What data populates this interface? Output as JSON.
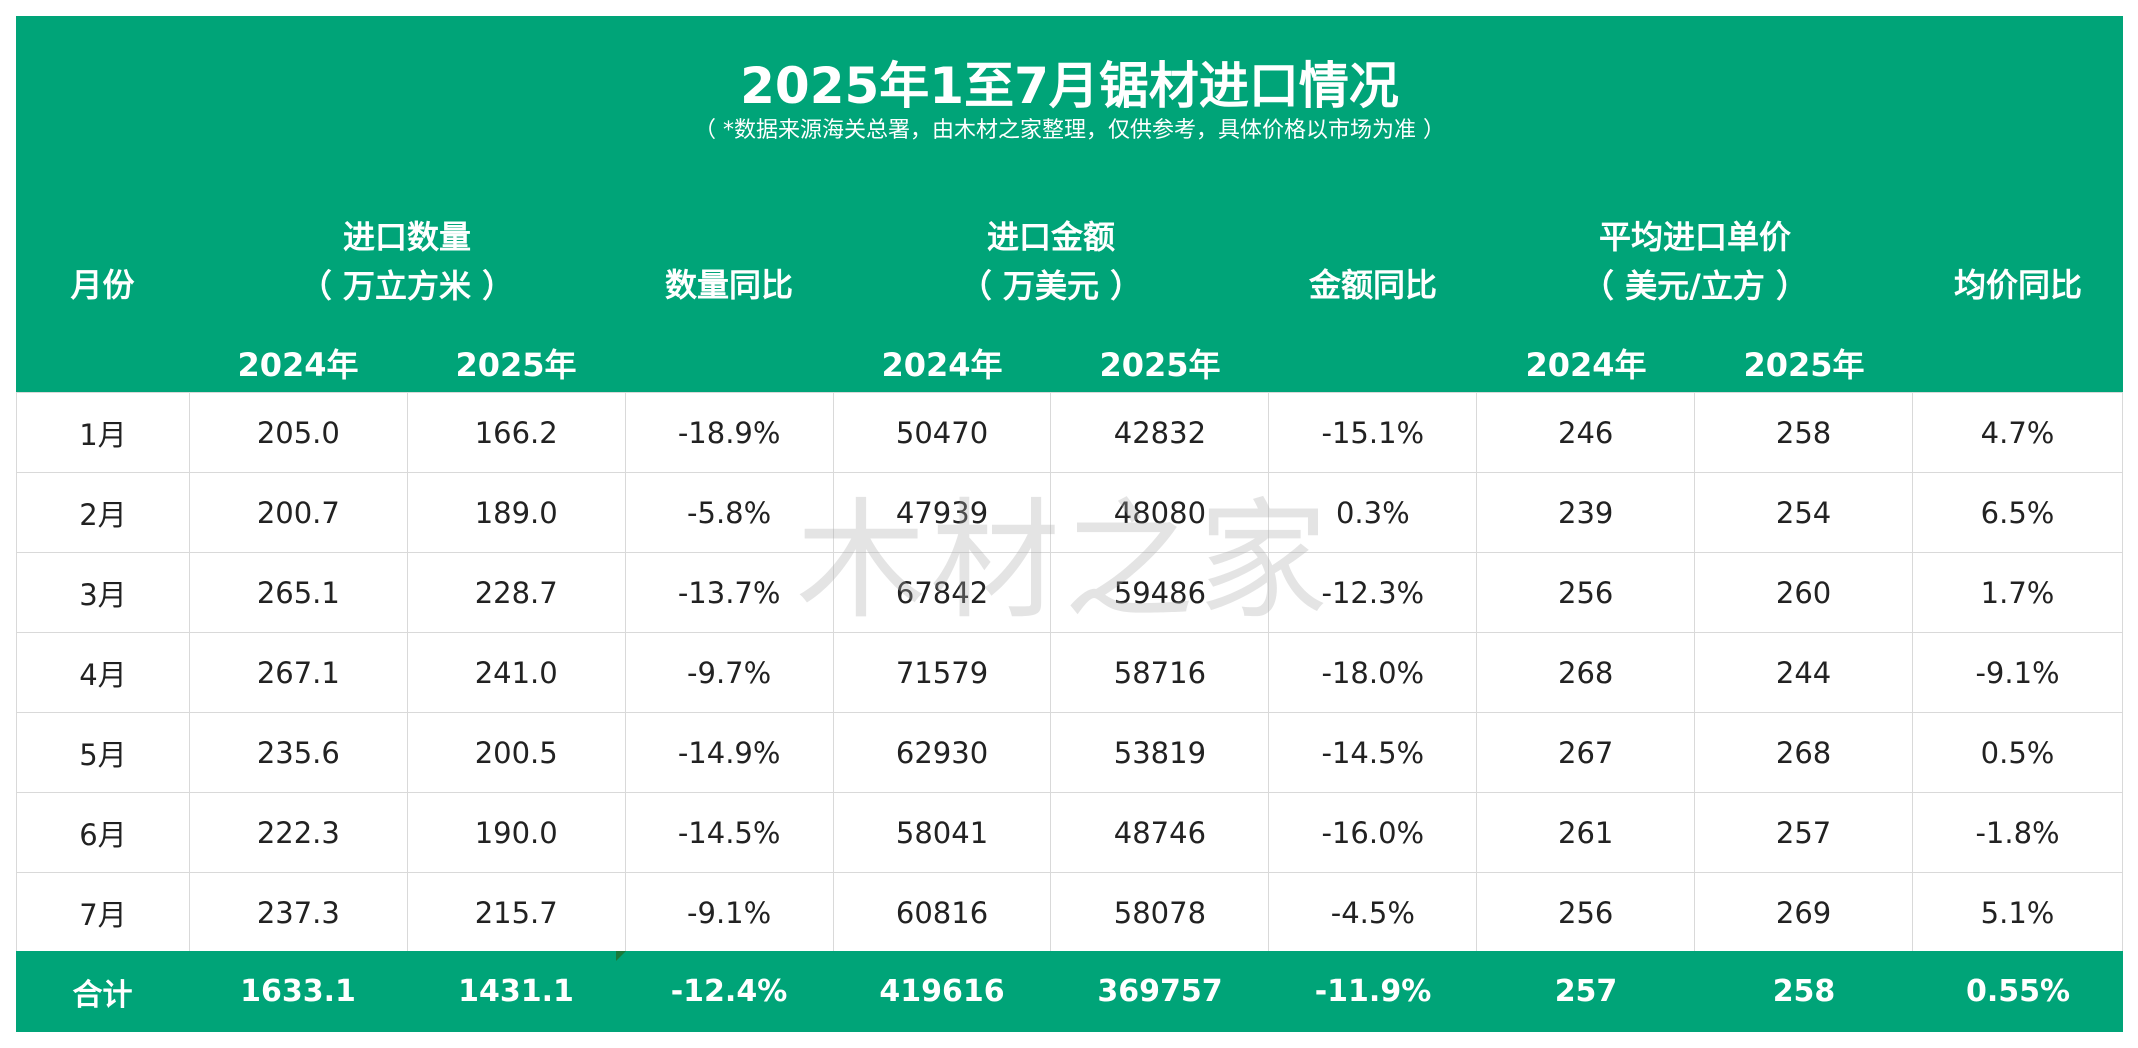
{
  "title": "2025年1至7月锯材进口情况",
  "subtitle": "（ *数据来源海关总署，由木材之家整理，仅供参考，具体价格以市场为准 ）",
  "header": {
    "month": "月份",
    "qty_line1": "进口数量",
    "qty_line2": "（ 万立方米 ）",
    "qty_yoy": "数量同比",
    "amt_line1": "进口金额",
    "amt_line2": "（ 万美元 ）",
    "amt_yoy": "金额同比",
    "price_line1": "平均进口单价",
    "price_line2": "（ 美元/立方 ）",
    "price_yoy": "均价同比",
    "y2024": "2024年",
    "y2025": "2025年"
  },
  "rows": [
    {
      "month": "1月",
      "q24": "205.0",
      "q25": "166.2",
      "qyoy": "-18.9%",
      "a24": "50470",
      "a25": "42832",
      "ayoy": "-15.1%",
      "p24": "246",
      "p25": "258",
      "pyoy": "4.7%"
    },
    {
      "month": "2月",
      "q24": "200.7",
      "q25": "189.0",
      "qyoy": "-5.8%",
      "a24": "47939",
      "a25": "48080",
      "ayoy": "0.3%",
      "p24": "239",
      "p25": "254",
      "pyoy": "6.5%"
    },
    {
      "month": "3月",
      "q24": "265.1",
      "q25": "228.7",
      "qyoy": "-13.7%",
      "a24": "67842",
      "a25": "59486",
      "ayoy": "-12.3%",
      "p24": "256",
      "p25": "260",
      "pyoy": "1.7%"
    },
    {
      "month": "4月",
      "q24": "267.1",
      "q25": "241.0",
      "qyoy": "-9.7%",
      "a24": "71579",
      "a25": "58716",
      "ayoy": "-18.0%",
      "p24": "268",
      "p25": "244",
      "pyoy": "-9.1%"
    },
    {
      "month": "5月",
      "q24": "235.6",
      "q25": "200.5",
      "qyoy": "-14.9%",
      "a24": "62930",
      "a25": "53819",
      "ayoy": "-14.5%",
      "p24": "267",
      "p25": "268",
      "pyoy": "0.5%"
    },
    {
      "month": "6月",
      "q24": "222.3",
      "q25": "190.0",
      "qyoy": "-14.5%",
      "a24": "58041",
      "a25": "48746",
      "ayoy": "-16.0%",
      "p24": "261",
      "p25": "257",
      "pyoy": "-1.8%"
    },
    {
      "month": "7月",
      "q24": "237.3",
      "q25": "215.7",
      "qyoy": "-9.1%",
      "a24": "60816",
      "a25": "58078",
      "ayoy": "-4.5%",
      "p24": "256",
      "p25": "269",
      "pyoy": "5.1%"
    }
  ],
  "total": {
    "label": "合计",
    "q24": "1633.1",
    "q25": "1431.1",
    "qyoy": "-12.4%",
    "a24": "419616",
    "a25": "369757",
    "ayoy": "-11.9%",
    "p24": "257",
    "p25": "258",
    "pyoy": "0.55%"
  },
  "watermark": "木材之家",
  "colors": {
    "header_bg": "#00a478",
    "negative": "#16a070",
    "positive": "#e02020",
    "grid": "#d9d9d9"
  }
}
